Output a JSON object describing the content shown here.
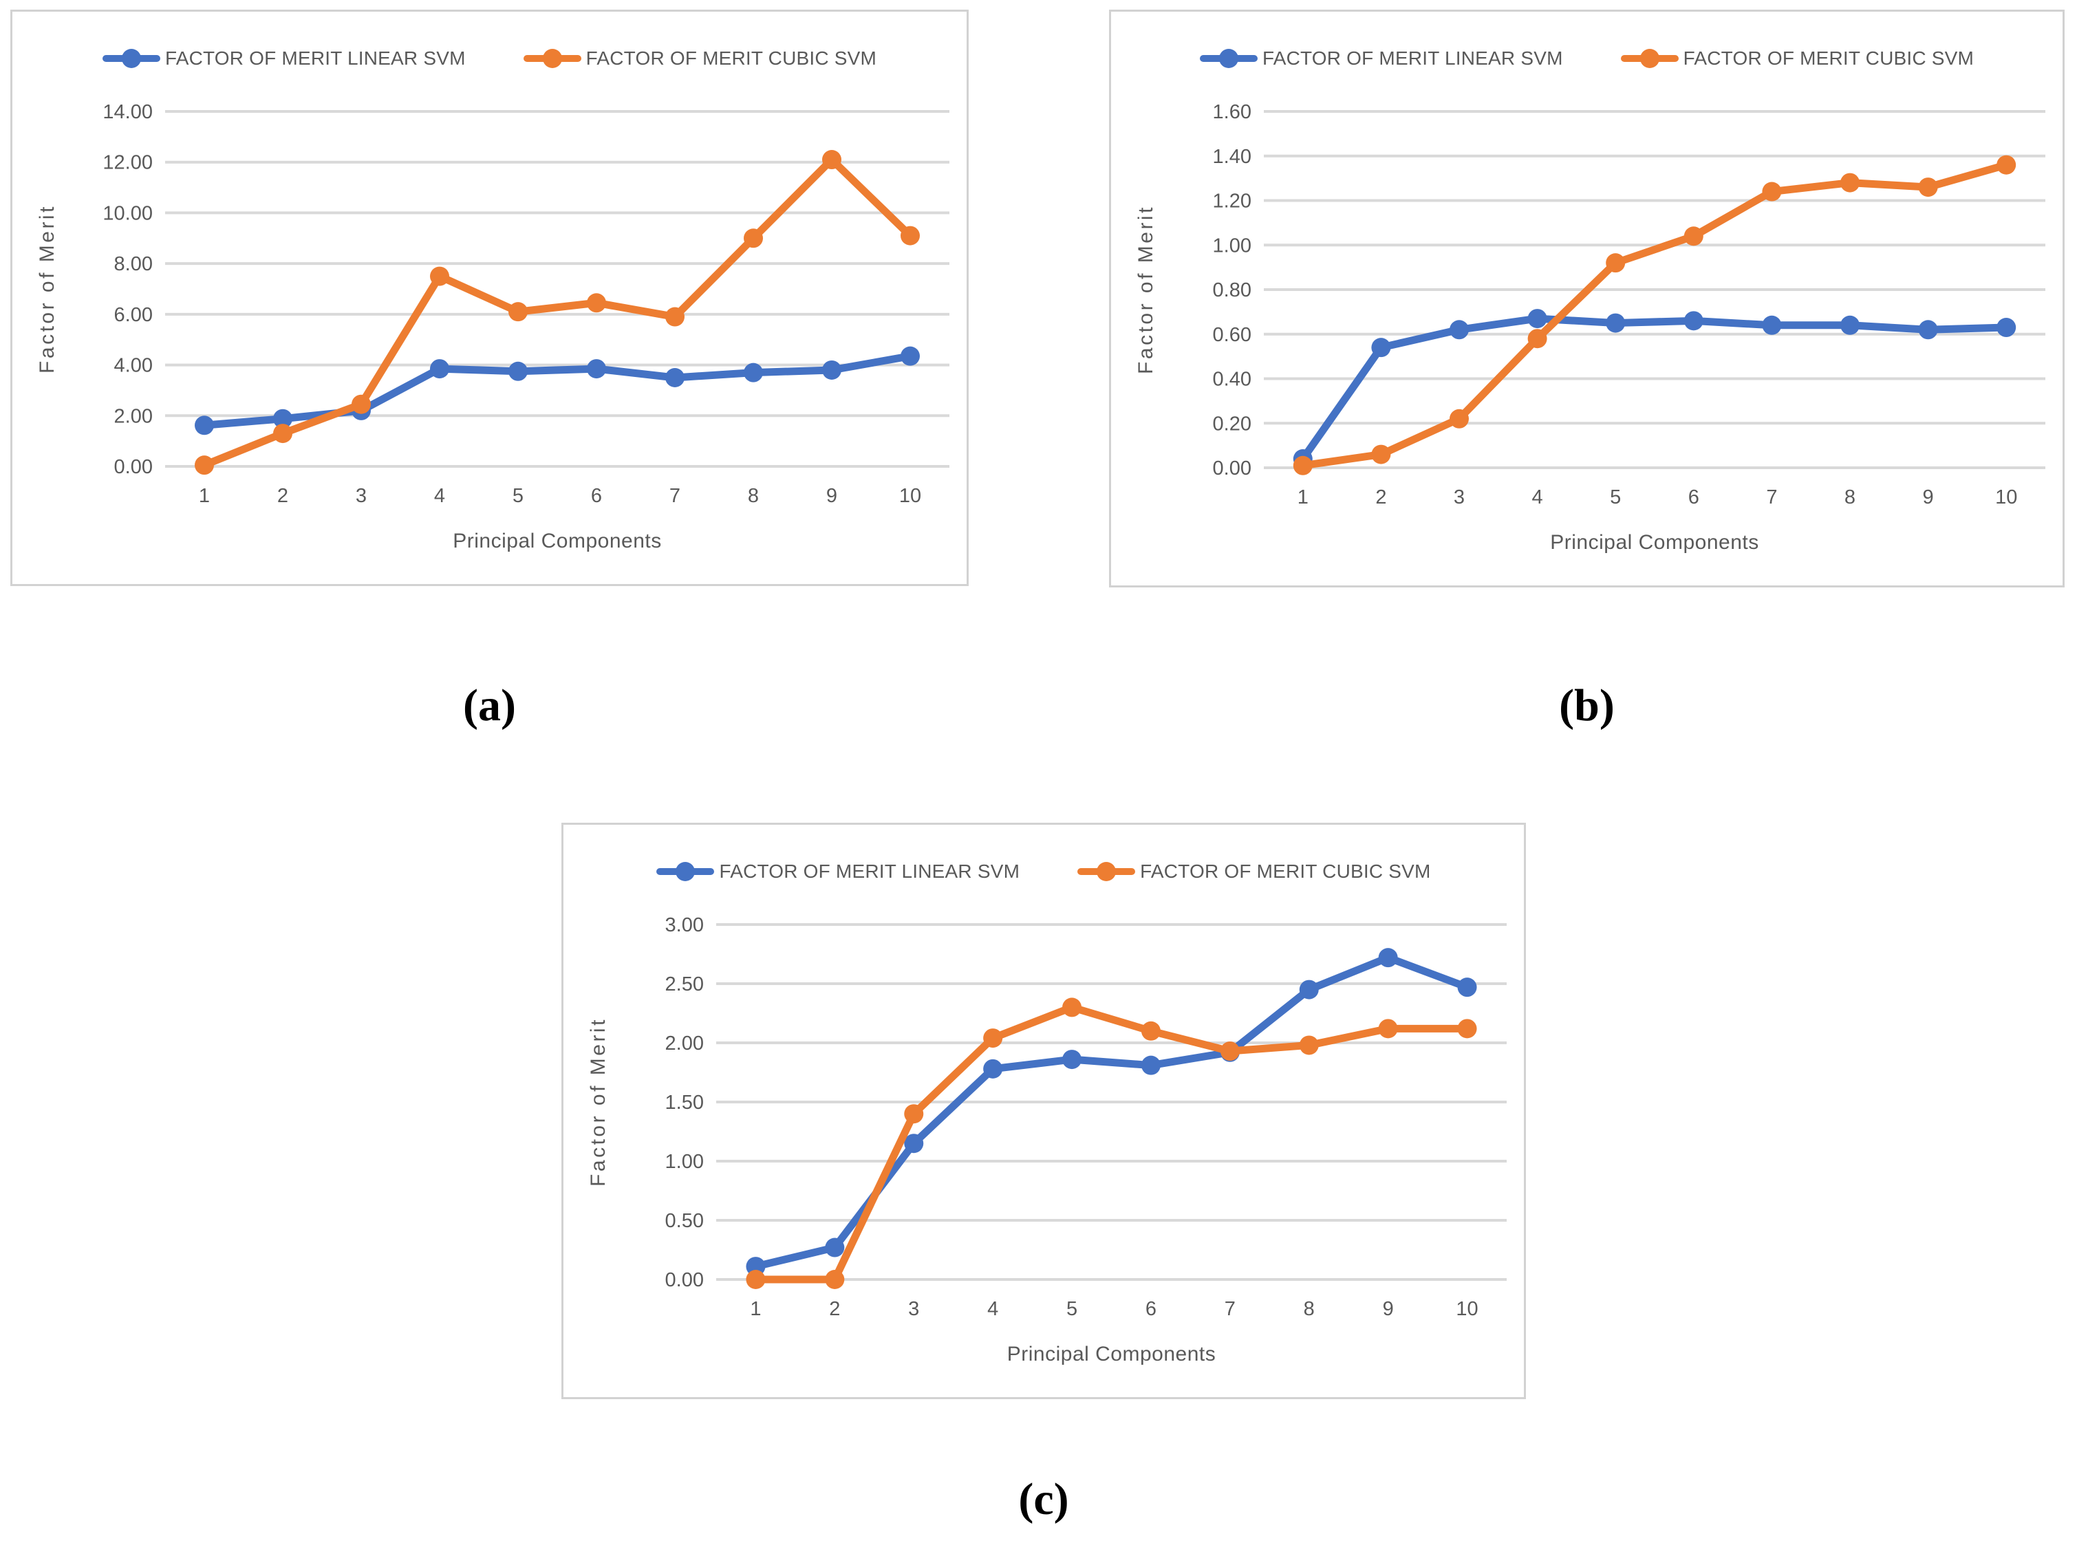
{
  "colors": {
    "linear": "#4472C4",
    "cubic": "#ED7D31",
    "grid": "#D9D9D9",
    "text": "#595959",
    "panel_border": "#D2D2D2"
  },
  "captions": {
    "a": "(a)",
    "b": "(b)",
    "c": "(c)"
  },
  "chart_data": [
    {
      "id": "a",
      "type": "line",
      "title": "",
      "xlabel": "Principal Components",
      "ylabel": "Factor of Merit",
      "legend_position": "top",
      "grid": true,
      "categories": [
        "1",
        "2",
        "3",
        "4",
        "5",
        "6",
        "7",
        "8",
        "9",
        "10"
      ],
      "ylim": [
        0,
        14
      ],
      "ytick_step": 2,
      "ytick_labels": [
        "0.00",
        "2.00",
        "4.00",
        "6.00",
        "8.00",
        "10.00",
        "12.00",
        "14.00"
      ],
      "series": [
        {
          "name": "FACTOR OF MERIT LINEAR SVM",
          "color_key": "linear",
          "values": [
            1.62,
            1.88,
            2.2,
            3.85,
            3.75,
            3.85,
            3.5,
            3.7,
            3.8,
            4.35
          ]
        },
        {
          "name": "FACTOR OF MERIT CUBIC SVM",
          "color_key": "cubic",
          "values": [
            0.05,
            1.3,
            2.45,
            7.5,
            6.1,
            6.45,
            5.9,
            9.0,
            12.1,
            9.1
          ]
        }
      ]
    },
    {
      "id": "b",
      "type": "line",
      "title": "",
      "xlabel": "Principal Components",
      "ylabel": "Factor of Merit",
      "legend_position": "top",
      "grid": true,
      "categories": [
        "1",
        "2",
        "3",
        "4",
        "5",
        "6",
        "7",
        "8",
        "9",
        "10"
      ],
      "ylim": [
        0,
        1.6
      ],
      "ytick_step": 0.2,
      "ytick_labels": [
        "0.00",
        "0.20",
        "0.40",
        "0.60",
        "0.80",
        "1.00",
        "1.20",
        "1.40",
        "1.60"
      ],
      "series": [
        {
          "name": "FACTOR OF MERIT LINEAR SVM",
          "color_key": "linear",
          "values": [
            0.04,
            0.54,
            0.62,
            0.67,
            0.65,
            0.66,
            0.64,
            0.64,
            0.62,
            0.63
          ]
        },
        {
          "name": "FACTOR OF MERIT CUBIC SVM",
          "color_key": "cubic",
          "values": [
            0.01,
            0.06,
            0.22,
            0.58,
            0.92,
            1.04,
            1.24,
            1.28,
            1.26,
            1.36
          ]
        }
      ]
    },
    {
      "id": "c",
      "type": "line",
      "title": "",
      "xlabel": "Principal Components",
      "ylabel": "Factor of Merit",
      "legend_position": "top",
      "grid": true,
      "categories": [
        "1",
        "2",
        "3",
        "4",
        "5",
        "6",
        "7",
        "8",
        "9",
        "10"
      ],
      "ylim": [
        0,
        3
      ],
      "ytick_step": 0.5,
      "ytick_labels": [
        "0.00",
        "0.50",
        "1.00",
        "1.50",
        "2.00",
        "2.50",
        "3.00"
      ],
      "series": [
        {
          "name": "FACTOR OF MERIT LINEAR SVM",
          "color_key": "linear",
          "values": [
            0.11,
            0.27,
            1.15,
            1.78,
            1.86,
            1.81,
            1.92,
            2.45,
            2.72,
            2.47
          ]
        },
        {
          "name": "FACTOR OF MERIT CUBIC SVM",
          "color_key": "cubic",
          "values": [
            0.0,
            0.0,
            1.4,
            2.04,
            2.3,
            2.1,
            1.93,
            1.98,
            2.12,
            2.12
          ]
        }
      ]
    }
  ]
}
